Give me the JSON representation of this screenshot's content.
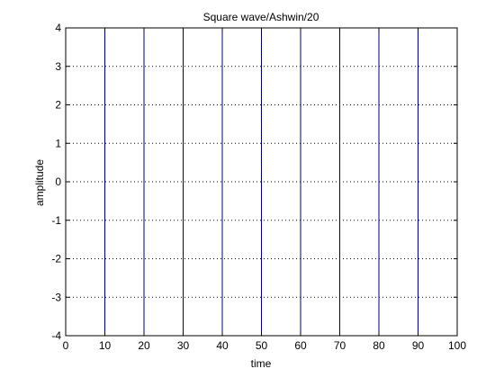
{
  "chart_data": {
    "type": "line",
    "title": "Square wave/Ashwin/20",
    "xlabel": "time",
    "ylabel": "amplitude",
    "xlim": [
      0,
      100
    ],
    "ylim": [
      -4,
      4
    ],
    "x_ticks": [
      0,
      10,
      20,
      30,
      40,
      50,
      60,
      70,
      80,
      90,
      100
    ],
    "y_ticks": [
      -4,
      -3,
      -2,
      -1,
      0,
      1,
      2,
      3,
      4
    ],
    "grid": "dotted",
    "series": [
      {
        "x": [
          10,
          10
        ],
        "y": [
          -4,
          4
        ],
        "color": "#00007f"
      },
      {
        "x": [
          20,
          20
        ],
        "y": [
          -4,
          4
        ],
        "color": "#00007f"
      },
      {
        "x": [
          30,
          30
        ],
        "y": [
          -4,
          4
        ],
        "color": "#00007f"
      },
      {
        "x": [
          40,
          40
        ],
        "y": [
          -4,
          4
        ],
        "color": "#00007f"
      },
      {
        "x": [
          50,
          50
        ],
        "y": [
          -4,
          4
        ],
        "color": "#00007f"
      },
      {
        "x": [
          60,
          60
        ],
        "y": [
          -4,
          4
        ],
        "color": "#00007f"
      },
      {
        "x": [
          70,
          70
        ],
        "y": [
          -4,
          4
        ],
        "color": "#00007f"
      },
      {
        "x": [
          80,
          80
        ],
        "y": [
          -4,
          4
        ],
        "color": "#00007f"
      },
      {
        "x": [
          90,
          90
        ],
        "y": [
          -4,
          4
        ],
        "color": "#00007f"
      },
      {
        "x": [
          100,
          100
        ],
        "y": [
          -4,
          4
        ],
        "color": "#00007f"
      },
      {
        "x": [
          50,
          50
        ],
        "y": [
          0,
          4
        ],
        "color": "#000000",
        "style": "dotted"
      }
    ]
  }
}
